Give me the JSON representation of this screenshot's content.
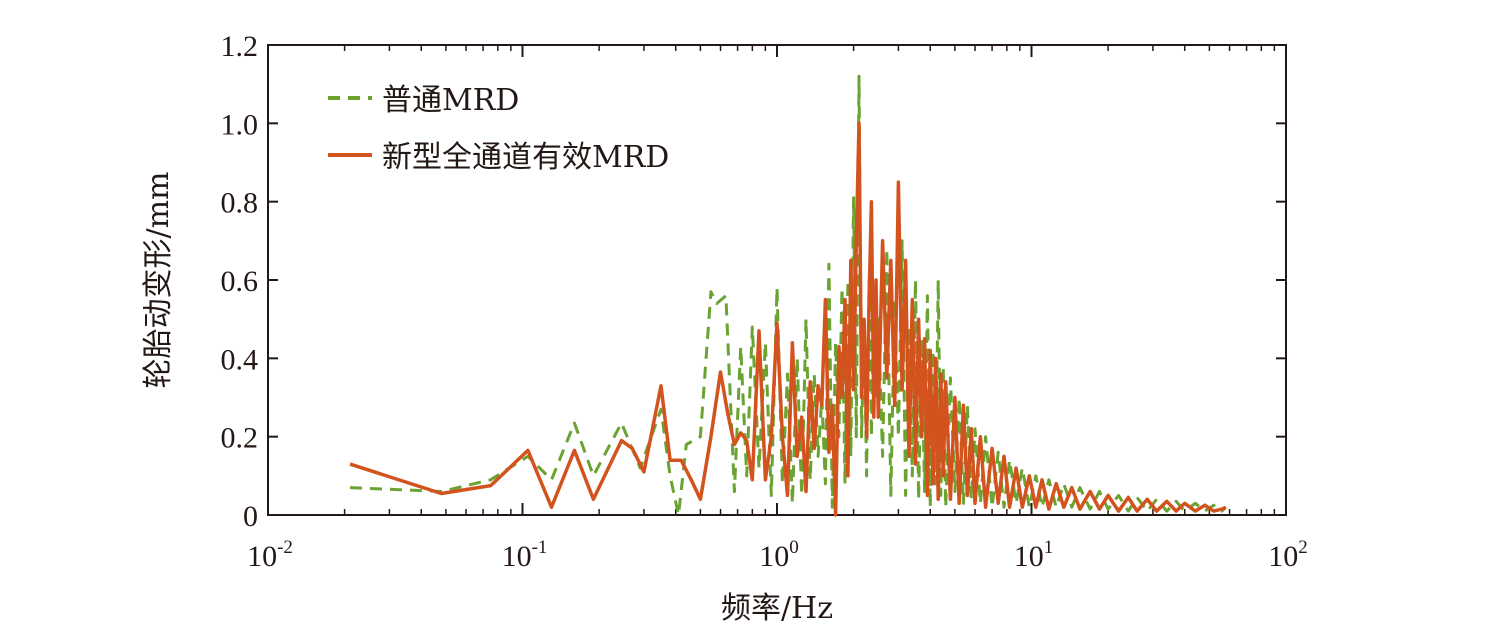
{
  "chart_data": {
    "type": "line",
    "title": "",
    "xlabel": "频率/Hz",
    "ylabel": "轮胎动变形/mm",
    "x_scale": "log",
    "xlim": [
      0.01,
      100
    ],
    "ylim": [
      0,
      1.2
    ],
    "x_ticks": [
      {
        "base": "10",
        "exp": "-2"
      },
      {
        "base": "10",
        "exp": "-1"
      },
      {
        "base": "10",
        "exp": "0"
      },
      {
        "base": "10",
        "exp": "1"
      },
      {
        "base": "10",
        "exp": "2"
      }
    ],
    "y_ticks": [
      "0",
      "0.2",
      "0.4",
      "0.6",
      "0.8",
      "1.0",
      "1.2"
    ],
    "grid": false,
    "legend_position": "top-left",
    "series": [
      {
        "name": "普通MRD",
        "style": "dashed",
        "color": "#6aa331",
        "x": [
          0.021,
          0.048,
          0.075,
          0.105,
          0.13,
          0.16,
          0.19,
          0.245,
          0.29,
          0.35,
          0.38,
          0.41,
          0.44,
          0.5,
          0.55,
          0.58,
          0.63,
          0.68,
          0.72,
          0.76,
          0.8,
          0.85,
          0.9,
          0.95,
          1.0,
          1.05,
          1.1,
          1.15,
          1.2,
          1.25,
          1.3,
          1.35,
          1.4,
          1.45,
          1.5,
          1.55,
          1.6,
          1.65,
          1.7,
          1.75,
          1.8,
          1.85,
          1.9,
          1.95,
          2.0,
          2.05,
          2.1,
          2.15,
          2.2,
          2.25,
          2.3,
          2.35,
          2.4,
          2.45,
          2.5,
          2.6,
          2.7,
          2.8,
          2.9,
          3.0,
          3.1,
          3.2,
          3.3,
          3.4,
          3.5,
          3.6,
          3.7,
          3.8,
          3.9,
          4.0,
          4.1,
          4.2,
          4.3,
          4.4,
          4.5,
          4.6,
          4.8,
          5.0,
          5.2,
          5.4,
          5.6,
          5.8,
          6.0,
          6.3,
          6.6,
          7.0,
          7.4,
          7.8,
          8.2,
          8.7,
          9.2,
          9.8,
          10.4,
          11.0,
          11.7,
          12.5,
          13.4,
          14.4,
          15.5,
          17.0,
          18.5,
          20.0,
          22.0,
          24.0,
          26.0,
          28.5,
          31.0,
          34.0,
          37.0,
          40.0,
          44.0,
          48.0,
          52.0,
          56.0,
          58.0
        ],
        "values": [
          0.07,
          0.06,
          0.09,
          0.15,
          0.09,
          0.235,
          0.1,
          0.235,
          0.12,
          0.27,
          0.1,
          0.0,
          0.18,
          0.2,
          0.57,
          0.54,
          0.56,
          0.06,
          0.43,
          0.1,
          0.48,
          0.12,
          0.44,
          0.05,
          0.58,
          0.08,
          0.36,
          0.03,
          0.4,
          0.05,
          0.5,
          0.09,
          0.36,
          0.15,
          0.3,
          0.08,
          0.64,
          0.02,
          0.44,
          0.2,
          0.58,
          0.08,
          0.6,
          0.15,
          0.81,
          0.2,
          1.12,
          0.2,
          0.5,
          0.1,
          0.6,
          0.2,
          0.55,
          0.3,
          0.5,
          0.15,
          0.68,
          0.05,
          0.55,
          0.2,
          0.7,
          0.05,
          0.48,
          0.1,
          0.6,
          0.04,
          0.45,
          0.06,
          0.56,
          0.02,
          0.42,
          0.08,
          0.6,
          0.05,
          0.38,
          0.02,
          0.35,
          0.06,
          0.3,
          0.03,
          0.28,
          0.04,
          0.22,
          0.03,
          0.2,
          0.02,
          0.16,
          0.02,
          0.14,
          0.03,
          0.12,
          0.02,
          0.1,
          0.02,
          0.09,
          0.02,
          0.08,
          0.02,
          0.07,
          0.015,
          0.06,
          0.015,
          0.05,
          0.01,
          0.045,
          0.01,
          0.04,
          0.01,
          0.035,
          0.01,
          0.03,
          0.01,
          0.025,
          0.01,
          0.02
        ]
      },
      {
        "name": "新型全通道有效MRD",
        "style": "solid",
        "color": "#d2531e",
        "x": [
          0.021,
          0.048,
          0.075,
          0.105,
          0.13,
          0.16,
          0.19,
          0.245,
          0.27,
          0.3,
          0.35,
          0.38,
          0.42,
          0.46,
          0.5,
          0.55,
          0.6,
          0.64,
          0.68,
          0.72,
          0.76,
          0.8,
          0.85,
          0.9,
          0.95,
          1.0,
          1.05,
          1.1,
          1.15,
          1.2,
          1.25,
          1.3,
          1.35,
          1.4,
          1.45,
          1.5,
          1.55,
          1.6,
          1.65,
          1.7,
          1.75,
          1.8,
          1.85,
          1.9,
          1.95,
          2.0,
          2.05,
          2.1,
          2.15,
          2.2,
          2.25,
          2.3,
          2.35,
          2.4,
          2.45,
          2.5,
          2.6,
          2.7,
          2.8,
          2.9,
          3.0,
          3.1,
          3.2,
          3.3,
          3.4,
          3.5,
          3.6,
          3.7,
          3.8,
          3.9,
          4.0,
          4.1,
          4.2,
          4.3,
          4.4,
          4.5,
          4.6,
          4.8,
          5.0,
          5.2,
          5.4,
          5.6,
          5.8,
          6.0,
          6.3,
          6.6,
          7.0,
          7.4,
          7.8,
          8.2,
          8.7,
          9.2,
          9.8,
          10.4,
          11.0,
          11.7,
          12.5,
          13.4,
          14.4,
          15.5,
          17.0,
          18.5,
          20.0,
          22.0,
          24.0,
          26.0,
          28.5,
          31.0,
          34.0,
          37.0,
          40.0,
          44.0,
          48.0,
          52.0,
          56.0,
          58.0
        ],
        "values": [
          0.13,
          0.055,
          0.075,
          0.165,
          0.02,
          0.165,
          0.04,
          0.19,
          0.17,
          0.11,
          0.33,
          0.14,
          0.14,
          0.09,
          0.04,
          0.2,
          0.365,
          0.26,
          0.18,
          0.21,
          0.19,
          0.09,
          0.47,
          0.09,
          0.2,
          0.49,
          0.2,
          0.05,
          0.44,
          0.15,
          0.25,
          0.06,
          0.34,
          0.17,
          0.33,
          0.28,
          0.55,
          0.16,
          0.28,
          0.0,
          0.43,
          0.3,
          0.55,
          0.1,
          0.65,
          0.32,
          0.7,
          1.0,
          0.3,
          0.5,
          0.2,
          0.55,
          0.8,
          0.25,
          0.6,
          0.25,
          0.7,
          0.35,
          0.65,
          0.28,
          0.85,
          0.32,
          0.65,
          0.15,
          0.55,
          0.13,
          0.5,
          0.2,
          0.45,
          0.05,
          0.42,
          0.08,
          0.4,
          0.04,
          0.36,
          0.1,
          0.34,
          0.04,
          0.3,
          0.03,
          0.28,
          0.05,
          0.22,
          0.03,
          0.2,
          0.02,
          0.17,
          0.03,
          0.15,
          0.02,
          0.12,
          0.02,
          0.1,
          0.02,
          0.09,
          0.015,
          0.08,
          0.02,
          0.07,
          0.015,
          0.06,
          0.015,
          0.05,
          0.01,
          0.045,
          0.01,
          0.04,
          0.01,
          0.035,
          0.01,
          0.03,
          0.01,
          0.025,
          0.01,
          0.015,
          0.02
        ]
      }
    ]
  }
}
